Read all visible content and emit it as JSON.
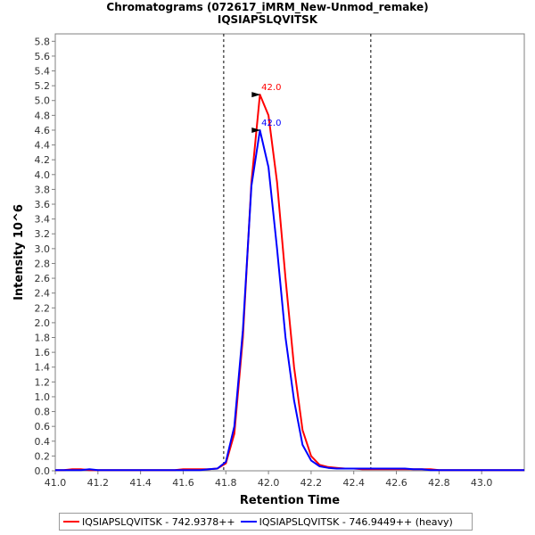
{
  "chart_data": {
    "type": "line",
    "title": "Chromatograms (072617_iMRM_New-Unmod_remake)",
    "subtitle": "IQSIAPSLQVITSK",
    "xlabel": "Retention Time",
    "ylabel": "Intensity 10^6",
    "xlim": [
      41.0,
      43.2
    ],
    "ylim": [
      0.0,
      5.9
    ],
    "xticks": [
      "41.0",
      "41.2",
      "41.4",
      "41.6",
      "41.8",
      "42.0",
      "42.2",
      "42.4",
      "42.6",
      "42.8",
      "43.0"
    ],
    "yticks": [
      "0.0",
      "0.2",
      "0.4",
      "0.6",
      "0.8",
      "1.0",
      "1.2",
      "1.4",
      "1.6",
      "1.8",
      "2.0",
      "2.2",
      "2.4",
      "2.6",
      "2.8",
      "3.0",
      "3.2",
      "3.4",
      "3.6",
      "3.8",
      "4.0",
      "4.2",
      "4.4",
      "4.6",
      "4.8",
      "5.0",
      "5.2",
      "5.4",
      "5.6",
      "5.8"
    ],
    "boundaries": [
      41.79,
      42.48
    ],
    "x": [
      41.0,
      41.04,
      41.08,
      41.12,
      41.16,
      41.2,
      41.24,
      41.28,
      41.32,
      41.36,
      41.4,
      41.44,
      41.48,
      41.52,
      41.56,
      41.6,
      41.64,
      41.68,
      41.72,
      41.76,
      41.8,
      41.84,
      41.88,
      41.92,
      41.96,
      42.0,
      42.04,
      42.08,
      42.12,
      42.16,
      42.2,
      42.24,
      42.28,
      42.32,
      42.36,
      42.4,
      42.44,
      42.48,
      42.52,
      42.56,
      42.6,
      42.64,
      42.68,
      42.72,
      42.76,
      42.8,
      42.84,
      42.88,
      42.92,
      42.96,
      43.0,
      43.04,
      43.08,
      43.12,
      43.16,
      43.2
    ],
    "series": [
      {
        "name": "IQSIAPSLQVITSK - 742.9378++",
        "color": "#ff0000",
        "values": [
          0.01,
          0.01,
          0.02,
          0.02,
          0.01,
          0.01,
          0.01,
          0.01,
          0.01,
          0.01,
          0.01,
          0.01,
          0.01,
          0.01,
          0.01,
          0.02,
          0.02,
          0.02,
          0.02,
          0.03,
          0.1,
          0.5,
          1.8,
          3.9,
          5.08,
          4.8,
          3.9,
          2.6,
          1.4,
          0.55,
          0.2,
          0.08,
          0.05,
          0.04,
          0.03,
          0.03,
          0.02,
          0.02,
          0.02,
          0.02,
          0.02,
          0.02,
          0.02,
          0.02,
          0.02,
          0.01,
          0.01,
          0.01,
          0.01,
          0.01,
          0.01,
          0.01,
          0.01,
          0.01,
          0.01,
          0.01
        ],
        "peak_x": 41.98,
        "peak_value": 5.08,
        "peak_label": "42.0"
      },
      {
        "name": "IQSIAPSLQVITSK - 746.9449++ (heavy)",
        "color": "#0000ff",
        "values": [
          0.01,
          0.01,
          0.01,
          0.01,
          0.02,
          0.01,
          0.01,
          0.01,
          0.01,
          0.01,
          0.01,
          0.01,
          0.01,
          0.01,
          0.01,
          0.01,
          0.01,
          0.01,
          0.02,
          0.03,
          0.12,
          0.6,
          1.9,
          3.85,
          4.6,
          4.1,
          3.0,
          1.8,
          0.95,
          0.35,
          0.14,
          0.06,
          0.04,
          0.03,
          0.03,
          0.03,
          0.03,
          0.03,
          0.03,
          0.03,
          0.03,
          0.03,
          0.02,
          0.02,
          0.01,
          0.01,
          0.01,
          0.01,
          0.01,
          0.01,
          0.01,
          0.01,
          0.01,
          0.01,
          0.01,
          0.01
        ],
        "peak_x": 41.98,
        "peak_value": 4.6,
        "peak_label": "42.0"
      }
    ],
    "legend_position": "bottom"
  }
}
